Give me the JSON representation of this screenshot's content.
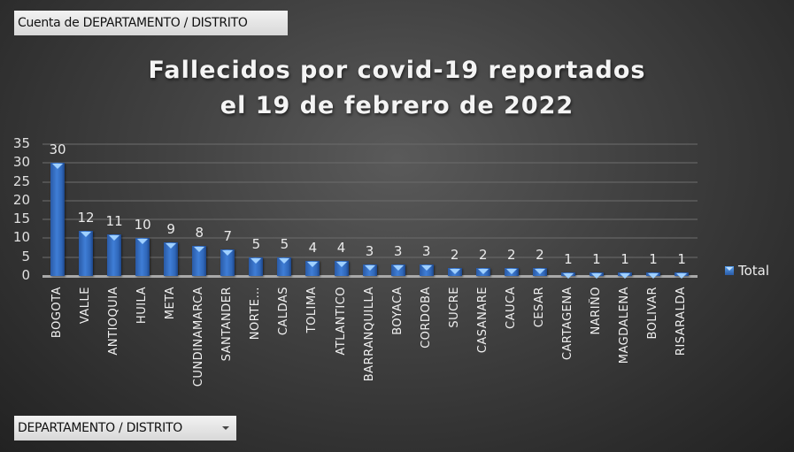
{
  "pivot": {
    "value_field_label": "Cuenta de DEPARTAMENTO / DISTRITO",
    "axis_field_label": "DEPARTAMENTO / DISTRITO",
    "axis_field_icon": "dropdown-arrow-icon"
  },
  "chart": {
    "title_line1": "Fallecidos por covid-19 reportados",
    "title_line2": "el 19 de febrero de 2022",
    "legend_label": "Total",
    "bar_color": "#3a78cf"
  },
  "chart_data": {
    "type": "bar",
    "title": "Fallecidos por covid-19 reportados el 19 de febrero de 2022",
    "xlabel": "",
    "ylabel": "",
    "categories": [
      "BOGOTA",
      "VALLE",
      "ANTIOQUIA",
      "HUILA",
      "META",
      "CUNDINAMARCA",
      "SANTANDER",
      "NORTE…",
      "CALDAS",
      "TOLIMA",
      "ATLANTICO",
      "BARRANQUILLA",
      "BOYACA",
      "CORDOBA",
      "SUCRE",
      "CASANARE",
      "CAUCA",
      "CESAR",
      "CARTAGENA",
      "NARIÑO",
      "MAGDALENA",
      "BOLIVAR",
      "RISARALDA"
    ],
    "series": [
      {
        "name": "Total",
        "values": [
          30,
          12,
          11,
          10,
          9,
          8,
          7,
          5,
          5,
          4,
          4,
          3,
          3,
          3,
          2,
          2,
          2,
          2,
          1,
          1,
          1,
          1,
          1
        ]
      }
    ],
    "yticks": [
      0,
      5,
      10,
      15,
      20,
      25,
      30,
      35
    ],
    "ylim": [
      0,
      35
    ],
    "grid": true,
    "legend_position": "right",
    "data_labels": true
  }
}
